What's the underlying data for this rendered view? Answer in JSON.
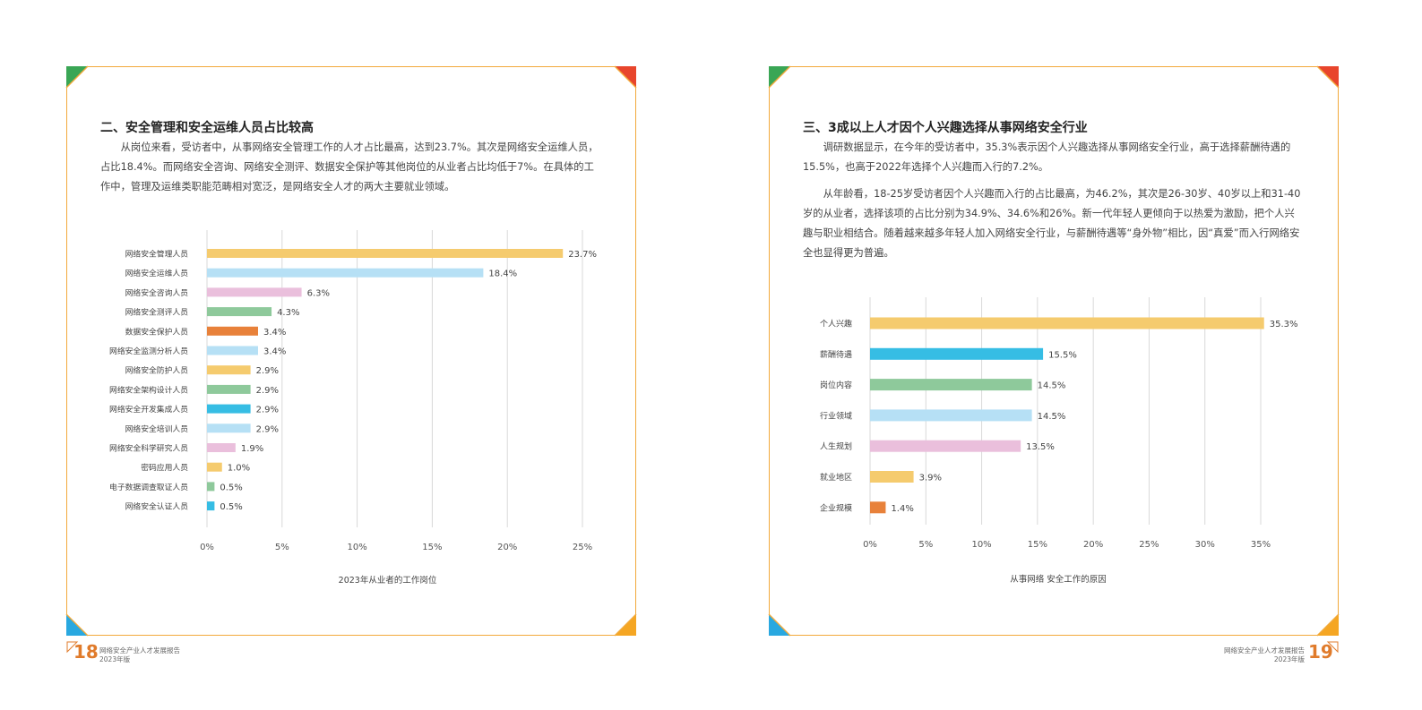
{
  "left_page": {
    "heading": "二、安全管理和安全运维人员占比较高",
    "paragraph": "从岗位来看，受访者中，从事网络安全管理工作的人才占比最高，达到23.7%。其次是网络安全运维人员，占比18.4%。而网络安全咨询、网络安全测评、数据安全保护等其他岗位的从业者占比均低于7%。在具体的工作中，管理及运维类职能范畴相对宽泛，是网络安全人才的两大主要就业领域。",
    "page_number": "18",
    "footer_title": "网络安全产业人才发展报告",
    "footer_edition": "2023年版"
  },
  "right_page": {
    "heading": "三、3成以上人才因个人兴趣选择从事网络安全行业",
    "paragraph1": "调研数据显示，在今年的受访者中，35.3%表示因个人兴趣选择从事网络安全行业，高于选择薪酬待遇的15.5%，也高于2022年选择个人兴趣而入行的7.2%。",
    "paragraph2": "从年龄看，18-25岁受访者因个人兴趣而入行的占比最高，为46.2%，其次是26-30岁、40岁以上和31-40岁的从业者，选择该项的占比分别为34.9%、34.6%和26%。新一代年轻人更倾向于以热爱为激励，把个人兴趣与职业相结合。随着越来越多年轻人加入网络安全行业，与薪酬待遇等“身外物”相比，因“真爱”而入行网络安全也显得更为普遍。",
    "page_number": "19",
    "footer_title": "网络安全产业人才发展报告",
    "footer_edition": "2023年版"
  },
  "colors": {
    "frame": "#f2a93b",
    "yellow": "#f5cb6e",
    "light_blue": "#b6e0f5",
    "pink": "#eabfdc",
    "green": "#8ec99b",
    "orange": "#e8813a",
    "blue": "#36bde4",
    "corner_green": "#3aa655",
    "corner_red": "#e8452c",
    "corner_blue": "#29a8e0",
    "corner_orange": "#f5a623",
    "page_number": "#e07b2b"
  },
  "chart_data": [
    {
      "type": "bar",
      "orientation": "horizontal",
      "title": "2023年从业者的工作岗位",
      "categories": [
        "网络安全管理人员",
        "网络安全运维人员",
        "网络安全咨询人员",
        "网络安全测评人员",
        "数据安全保护人员",
        "网络安全监测分析人员",
        "网络安全防护人员",
        "网络安全架构设计人员",
        "网络安全开发集成人员",
        "网络安全培训人员",
        "网络安全科学研究人员",
        "密码应用人员",
        "电子数据调查取证人员",
        "网络安全认证人员"
      ],
      "values": [
        23.7,
        18.4,
        6.3,
        4.3,
        3.4,
        3.4,
        2.9,
        2.9,
        2.9,
        2.9,
        1.9,
        1.0,
        0.5,
        0.5
      ],
      "value_labels": [
        "23.7%",
        "18.4%",
        "6.3%",
        "4.3%",
        "3.4%",
        "3.4%",
        "2.9%",
        "2.9%",
        "2.9%",
        "2.9%",
        "1.9%",
        "1.0%",
        "0.5%",
        "0.5%"
      ],
      "bar_colors": [
        "#f5cb6e",
        "#b6e0f5",
        "#eabfdc",
        "#8ec99b",
        "#e8813a",
        "#b6e0f5",
        "#f5cb6e",
        "#8ec99b",
        "#36bde4",
        "#b6e0f5",
        "#eabfdc",
        "#f5cb6e",
        "#8ec99b",
        "#36bde4"
      ],
      "xticks": [
        "0%",
        "5%",
        "10%",
        "15%",
        "20%",
        "25%"
      ],
      "xlim": [
        0,
        25
      ],
      "grid": true
    },
    {
      "type": "bar",
      "orientation": "horizontal",
      "title": "从事网络 安全工作的原因",
      "categories": [
        "个人兴趣",
        "薪酬待遇",
        "岗位内容",
        "行业领域",
        "人生规划",
        "就业地区",
        "企业规模"
      ],
      "values": [
        35.3,
        15.5,
        14.5,
        14.5,
        13.5,
        3.9,
        1.4
      ],
      "value_labels": [
        "35.3%",
        "15.5%",
        "14.5%",
        "14.5%",
        "13.5%",
        "3.9%",
        "1.4%"
      ],
      "bar_colors": [
        "#f5cb6e",
        "#36bde4",
        "#8ec99b",
        "#b6e0f5",
        "#eabfdc",
        "#f5cb6e",
        "#e8813a"
      ],
      "xticks": [
        "0%",
        "5%",
        "10%",
        "15%",
        "20%",
        "25%",
        "30%",
        "35%"
      ],
      "xlim": [
        0,
        35
      ],
      "grid": true
    }
  ]
}
